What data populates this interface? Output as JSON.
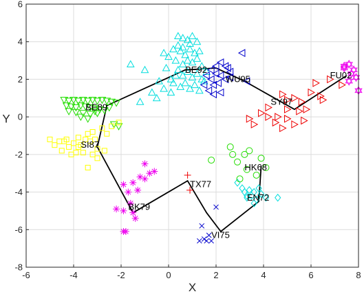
{
  "chart_data": {
    "type": "scatter",
    "xlabel": "X",
    "ylabel": "Y",
    "xlim": [
      -6,
      8
    ],
    "ylim": [
      -8,
      6
    ],
    "xticks": [
      -6,
      -4,
      -2,
      0,
      2,
      4,
      6,
      8
    ],
    "yticks": [
      -8,
      -6,
      -4,
      -2,
      0,
      2,
      4,
      6
    ],
    "grid": true,
    "legend": "none",
    "series": [
      {
        "name": "BE89",
        "marker": "triangle-down",
        "color": "#22dd00",
        "points": [
          [
            -4.4,
            0.9
          ],
          [
            -4.2,
            0.85
          ],
          [
            -4.0,
            0.9
          ],
          [
            -3.8,
            0.85
          ],
          [
            -3.6,
            0.9
          ],
          [
            -3.4,
            0.85
          ],
          [
            -3.2,
            0.9
          ],
          [
            -3.0,
            0.85
          ],
          [
            -2.8,
            0.9
          ],
          [
            -2.6,
            0.85
          ],
          [
            -2.4,
            0.8
          ],
          [
            -2.2,
            0.75
          ],
          [
            -4.3,
            0.6
          ],
          [
            -4.1,
            0.55
          ],
          [
            -3.9,
            0.5
          ],
          [
            -3.7,
            0.6
          ],
          [
            -3.5,
            0.55
          ],
          [
            -3.3,
            0.5
          ],
          [
            -3.1,
            0.45
          ],
          [
            -2.9,
            0.4
          ],
          [
            -2.7,
            0.35
          ],
          [
            -2.5,
            0.5
          ],
          [
            -4.2,
            0.3
          ],
          [
            -3.9,
            0.25
          ],
          [
            -3.6,
            0.2
          ],
          [
            -3.3,
            0.15
          ],
          [
            -3.0,
            0.2
          ],
          [
            -3.7,
            0.0
          ],
          [
            -3.4,
            -0.1
          ],
          [
            -3.1,
            0.3
          ],
          [
            -2.3,
            -0.4
          ],
          [
            -2.1,
            -0.5
          ]
        ]
      },
      {
        "name": "SI87",
        "marker": "square",
        "color": "#ffff00",
        "points": [
          [
            -5.0,
            -1.2
          ],
          [
            -4.8,
            -1.5
          ],
          [
            -4.6,
            -1.3
          ],
          [
            -4.5,
            -1.8
          ],
          [
            -4.3,
            -1.2
          ],
          [
            -4.2,
            -1.6
          ],
          [
            -4.0,
            -1.4
          ],
          [
            -3.9,
            -1.9
          ],
          [
            -3.8,
            -1.1
          ],
          [
            -3.7,
            -1.5
          ],
          [
            -3.5,
            -1.2
          ],
          [
            -3.4,
            -0.9
          ],
          [
            -3.3,
            -1.3
          ],
          [
            -3.2,
            -0.8
          ],
          [
            -3.1,
            -1.2
          ],
          [
            -3.0,
            -1.7
          ],
          [
            -2.8,
            -0.6
          ],
          [
            -2.6,
            -0.9
          ],
          [
            -2.4,
            -0.5
          ],
          [
            -2.1,
            -0.3
          ],
          [
            -4.1,
            -2.0
          ],
          [
            -3.6,
            -1.9
          ],
          [
            -3.0,
            -2.2
          ],
          [
            -2.7,
            -1.8
          ],
          [
            -4.4,
            -1.3
          ],
          [
            -3.4,
            -2.7
          ],
          [
            -3.8,
            -1.6
          ],
          [
            -3.2,
            -2.0
          ]
        ]
      },
      {
        "name": "BE92",
        "marker": "triangle-up",
        "color": "#00dddd",
        "points": [
          [
            -0.2,
            3.4
          ],
          [
            0.0,
            3.2
          ],
          [
            0.2,
            3.6
          ],
          [
            0.4,
            3.8
          ],
          [
            0.6,
            4.2
          ],
          [
            0.8,
            4.1
          ],
          [
            1.0,
            4.3
          ],
          [
            1.2,
            4.0
          ],
          [
            0.5,
            3.5
          ],
          [
            0.7,
            3.3
          ],
          [
            0.9,
            3.6
          ],
          [
            1.1,
            3.4
          ],
          [
            1.3,
            3.5
          ],
          [
            0.3,
            3.0
          ],
          [
            0.6,
            2.8
          ],
          [
            0.8,
            3.0
          ],
          [
            1.0,
            2.9
          ],
          [
            1.2,
            3.1
          ],
          [
            1.4,
            2.7
          ],
          [
            0.4,
            2.5
          ],
          [
            0.6,
            2.2
          ],
          [
            0.8,
            2.4
          ],
          [
            1.0,
            2.1
          ],
          [
            1.2,
            2.3
          ],
          [
            1.4,
            2.0
          ],
          [
            0.2,
            1.8
          ],
          [
            0.5,
            1.6
          ],
          [
            0.7,
            1.8
          ],
          [
            0.9,
            1.5
          ],
          [
            1.1,
            1.7
          ],
          [
            1.3,
            1.4
          ],
          [
            0.1,
            1.3
          ],
          [
            -0.2,
            1.5
          ],
          [
            -0.4,
            1.9
          ],
          [
            -0.7,
            1.3
          ],
          [
            -0.5,
            1.0
          ],
          [
            -1.2,
            0.8
          ],
          [
            -1.6,
            2.8
          ],
          [
            -1.0,
            2.5
          ],
          [
            0.3,
            2.2
          ],
          [
            -0.1,
            2.6
          ],
          [
            1.5,
            1.9
          ],
          [
            1.6,
            2.4
          ],
          [
            0.9,
            3.9
          ],
          [
            0.4,
            4.3
          ],
          [
            0.6,
            3.7
          ],
          [
            0.1,
            2.0
          ]
        ]
      },
      {
        "name": "WU95",
        "marker": "triangle-left",
        "color": "#0000cc",
        "points": [
          [
            1.6,
            2.2
          ],
          [
            1.8,
            2.5
          ],
          [
            2.0,
            2.7
          ],
          [
            2.2,
            2.9
          ],
          [
            2.4,
            2.7
          ],
          [
            2.0,
            2.3
          ],
          [
            2.2,
            2.2
          ],
          [
            2.4,
            2.0
          ],
          [
            1.8,
            2.0
          ],
          [
            1.9,
            1.7
          ],
          [
            2.1,
            1.8
          ],
          [
            1.7,
            1.4
          ],
          [
            1.9,
            1.2
          ],
          [
            2.2,
            1.3
          ],
          [
            2.6,
            2.4
          ],
          [
            3.1,
            3.4
          ],
          [
            3.3,
            1.9
          ],
          [
            2.5,
            2.6
          ],
          [
            1.5,
            1.7
          ],
          [
            2.6,
            2.1
          ]
        ]
      },
      {
        "name": "SY97",
        "marker": "triangle-right",
        "color": "#ee0000",
        "points": [
          [
            4.8,
            1.2
          ],
          [
            5.0,
            0.9
          ],
          [
            5.3,
            1.0
          ],
          [
            5.6,
            0.8
          ],
          [
            6.0,
            1.3
          ],
          [
            6.2,
            1.8
          ],
          [
            5.0,
            0.4
          ],
          [
            5.5,
            0.3
          ],
          [
            6.5,
            0.9
          ],
          [
            7.3,
            1.7
          ],
          [
            4.2,
            0.0
          ],
          [
            4.5,
            -0.3
          ],
          [
            5.0,
            -0.1
          ],
          [
            5.3,
            -0.4
          ],
          [
            5.7,
            -0.2
          ],
          [
            4.8,
            -0.6
          ],
          [
            3.4,
            -0.1
          ],
          [
            3.9,
            0.2
          ],
          [
            4.6,
            0.0
          ],
          [
            5.8,
            0.4
          ],
          [
            6.4,
            1.1
          ],
          [
            6.8,
            2.0
          ],
          [
            4.2,
            0.5
          ],
          [
            3.6,
            -0.4
          ]
        ]
      },
      {
        "name": "FU02",
        "marker": "hexagram",
        "color": "#ee00ee",
        "points": [
          [
            7.4,
            2.7
          ],
          [
            7.6,
            2.8
          ],
          [
            7.7,
            2.3
          ],
          [
            7.9,
            2.1
          ],
          [
            8.0,
            1.4
          ],
          [
            7.6,
            1.9
          ],
          [
            7.4,
            2.6
          ],
          [
            7.8,
            2.5
          ]
        ]
      },
      {
        "name": "EN72",
        "marker": "diamond",
        "color": "#00dddd",
        "points": [
          [
            2.9,
            -3.5
          ],
          [
            3.1,
            -3.8
          ],
          [
            3.3,
            -4.3
          ],
          [
            3.5,
            -4.2
          ],
          [
            3.7,
            -4.4
          ],
          [
            3.9,
            -4.1
          ],
          [
            4.1,
            -4.3
          ],
          [
            3.4,
            -3.9
          ],
          [
            3.6,
            -4.0
          ],
          [
            3.2,
            -4.0
          ],
          [
            3.6,
            -4.6
          ],
          [
            3.3,
            -4.2
          ],
          [
            3.8,
            -3.8
          ],
          [
            4.6,
            -4.3
          ]
        ]
      },
      {
        "name": "HK68",
        "marker": "circle",
        "color": "#22dd00",
        "points": [
          [
            2.7,
            -2.0
          ],
          [
            3.4,
            -1.8
          ],
          [
            2.9,
            -2.4
          ],
          [
            3.9,
            -2.2
          ],
          [
            4.1,
            -2.7
          ],
          [
            3.3,
            -2.8
          ],
          [
            3.7,
            -3.1
          ],
          [
            3.0,
            -3.3
          ],
          [
            1.8,
            -2.3
          ],
          [
            2.6,
            -1.6
          ],
          [
            3.2,
            -2.0
          ]
        ]
      },
      {
        "name": "TX77",
        "marker": "plus",
        "color": "#ee0000",
        "points": [
          [
            0.8,
            -3.1
          ],
          [
            0.9,
            -3.9
          ]
        ]
      },
      {
        "name": "VI75",
        "marker": "x",
        "color": "#0000cc",
        "points": [
          [
            1.4,
            -5.8
          ],
          [
            1.5,
            -6.5
          ],
          [
            1.6,
            -6.6
          ],
          [
            1.7,
            -6.3
          ],
          [
            1.8,
            -6.6
          ],
          [
            2.0,
            -4.8
          ],
          [
            1.3,
            -6.6
          ]
        ]
      },
      {
        "name": "BK79",
        "marker": "asterisk",
        "color": "#ee00ee",
        "points": [
          [
            -1.0,
            -2.5
          ],
          [
            -1.2,
            -3.2
          ],
          [
            -0.8,
            -3.0
          ],
          [
            -1.5,
            -3.5
          ],
          [
            -1.3,
            -3.9
          ],
          [
            -1.7,
            -4.0
          ],
          [
            -1.9,
            -3.6
          ],
          [
            -1.6,
            -4.6
          ],
          [
            -1.5,
            -5.1
          ],
          [
            -1.9,
            -5.0
          ],
          [
            -1.8,
            -6.1
          ],
          [
            -2.2,
            -4.9
          ],
          [
            -1.4,
            -5.4
          ],
          [
            -0.6,
            -2.9
          ],
          [
            -1.0,
            -3.3
          ],
          [
            -1.9,
            -6.1
          ]
        ]
      }
    ],
    "trajectory": {
      "color": "#000000",
      "points": [
        [
          7.5,
          2.2
        ],
        [
          5.3,
          0.4
        ],
        [
          3.2,
          1.9
        ],
        [
          2.0,
          2.6
        ],
        [
          0.7,
          2.5
        ],
        [
          -2.6,
          0.6
        ],
        [
          -3.0,
          -1.6
        ],
        [
          -1.5,
          -5.1
        ],
        [
          0.8,
          -3.4
        ],
        [
          1.6,
          -5.1
        ],
        [
          2.2,
          -6.1
        ],
        [
          3.8,
          -4.5
        ],
        [
          3.9,
          -2.6
        ]
      ]
    },
    "annotations": [
      {
        "text": "FU02",
        "x": 6.8,
        "y": 2.2
      },
      {
        "text": "SY97",
        "x": 4.3,
        "y": 0.8
      },
      {
        "text": "WU95",
        "x": 2.4,
        "y": 2.0
      },
      {
        "text": "BE92",
        "x": 0.7,
        "y": 2.5
      },
      {
        "text": "BE89",
        "x": -3.5,
        "y": 0.5
      },
      {
        "text": "SI87",
        "x": -3.7,
        "y": -1.5
      },
      {
        "text": "HK68",
        "x": 3.2,
        "y": -2.7
      },
      {
        "text": "TX77",
        "x": 0.9,
        "y": -3.6
      },
      {
        "text": "EN72",
        "x": 3.3,
        "y": -4.3
      },
      {
        "text": "BK79",
        "x": -1.7,
        "y": -4.8
      },
      {
        "text": "VI75",
        "x": 1.8,
        "y": -6.3
      }
    ]
  }
}
